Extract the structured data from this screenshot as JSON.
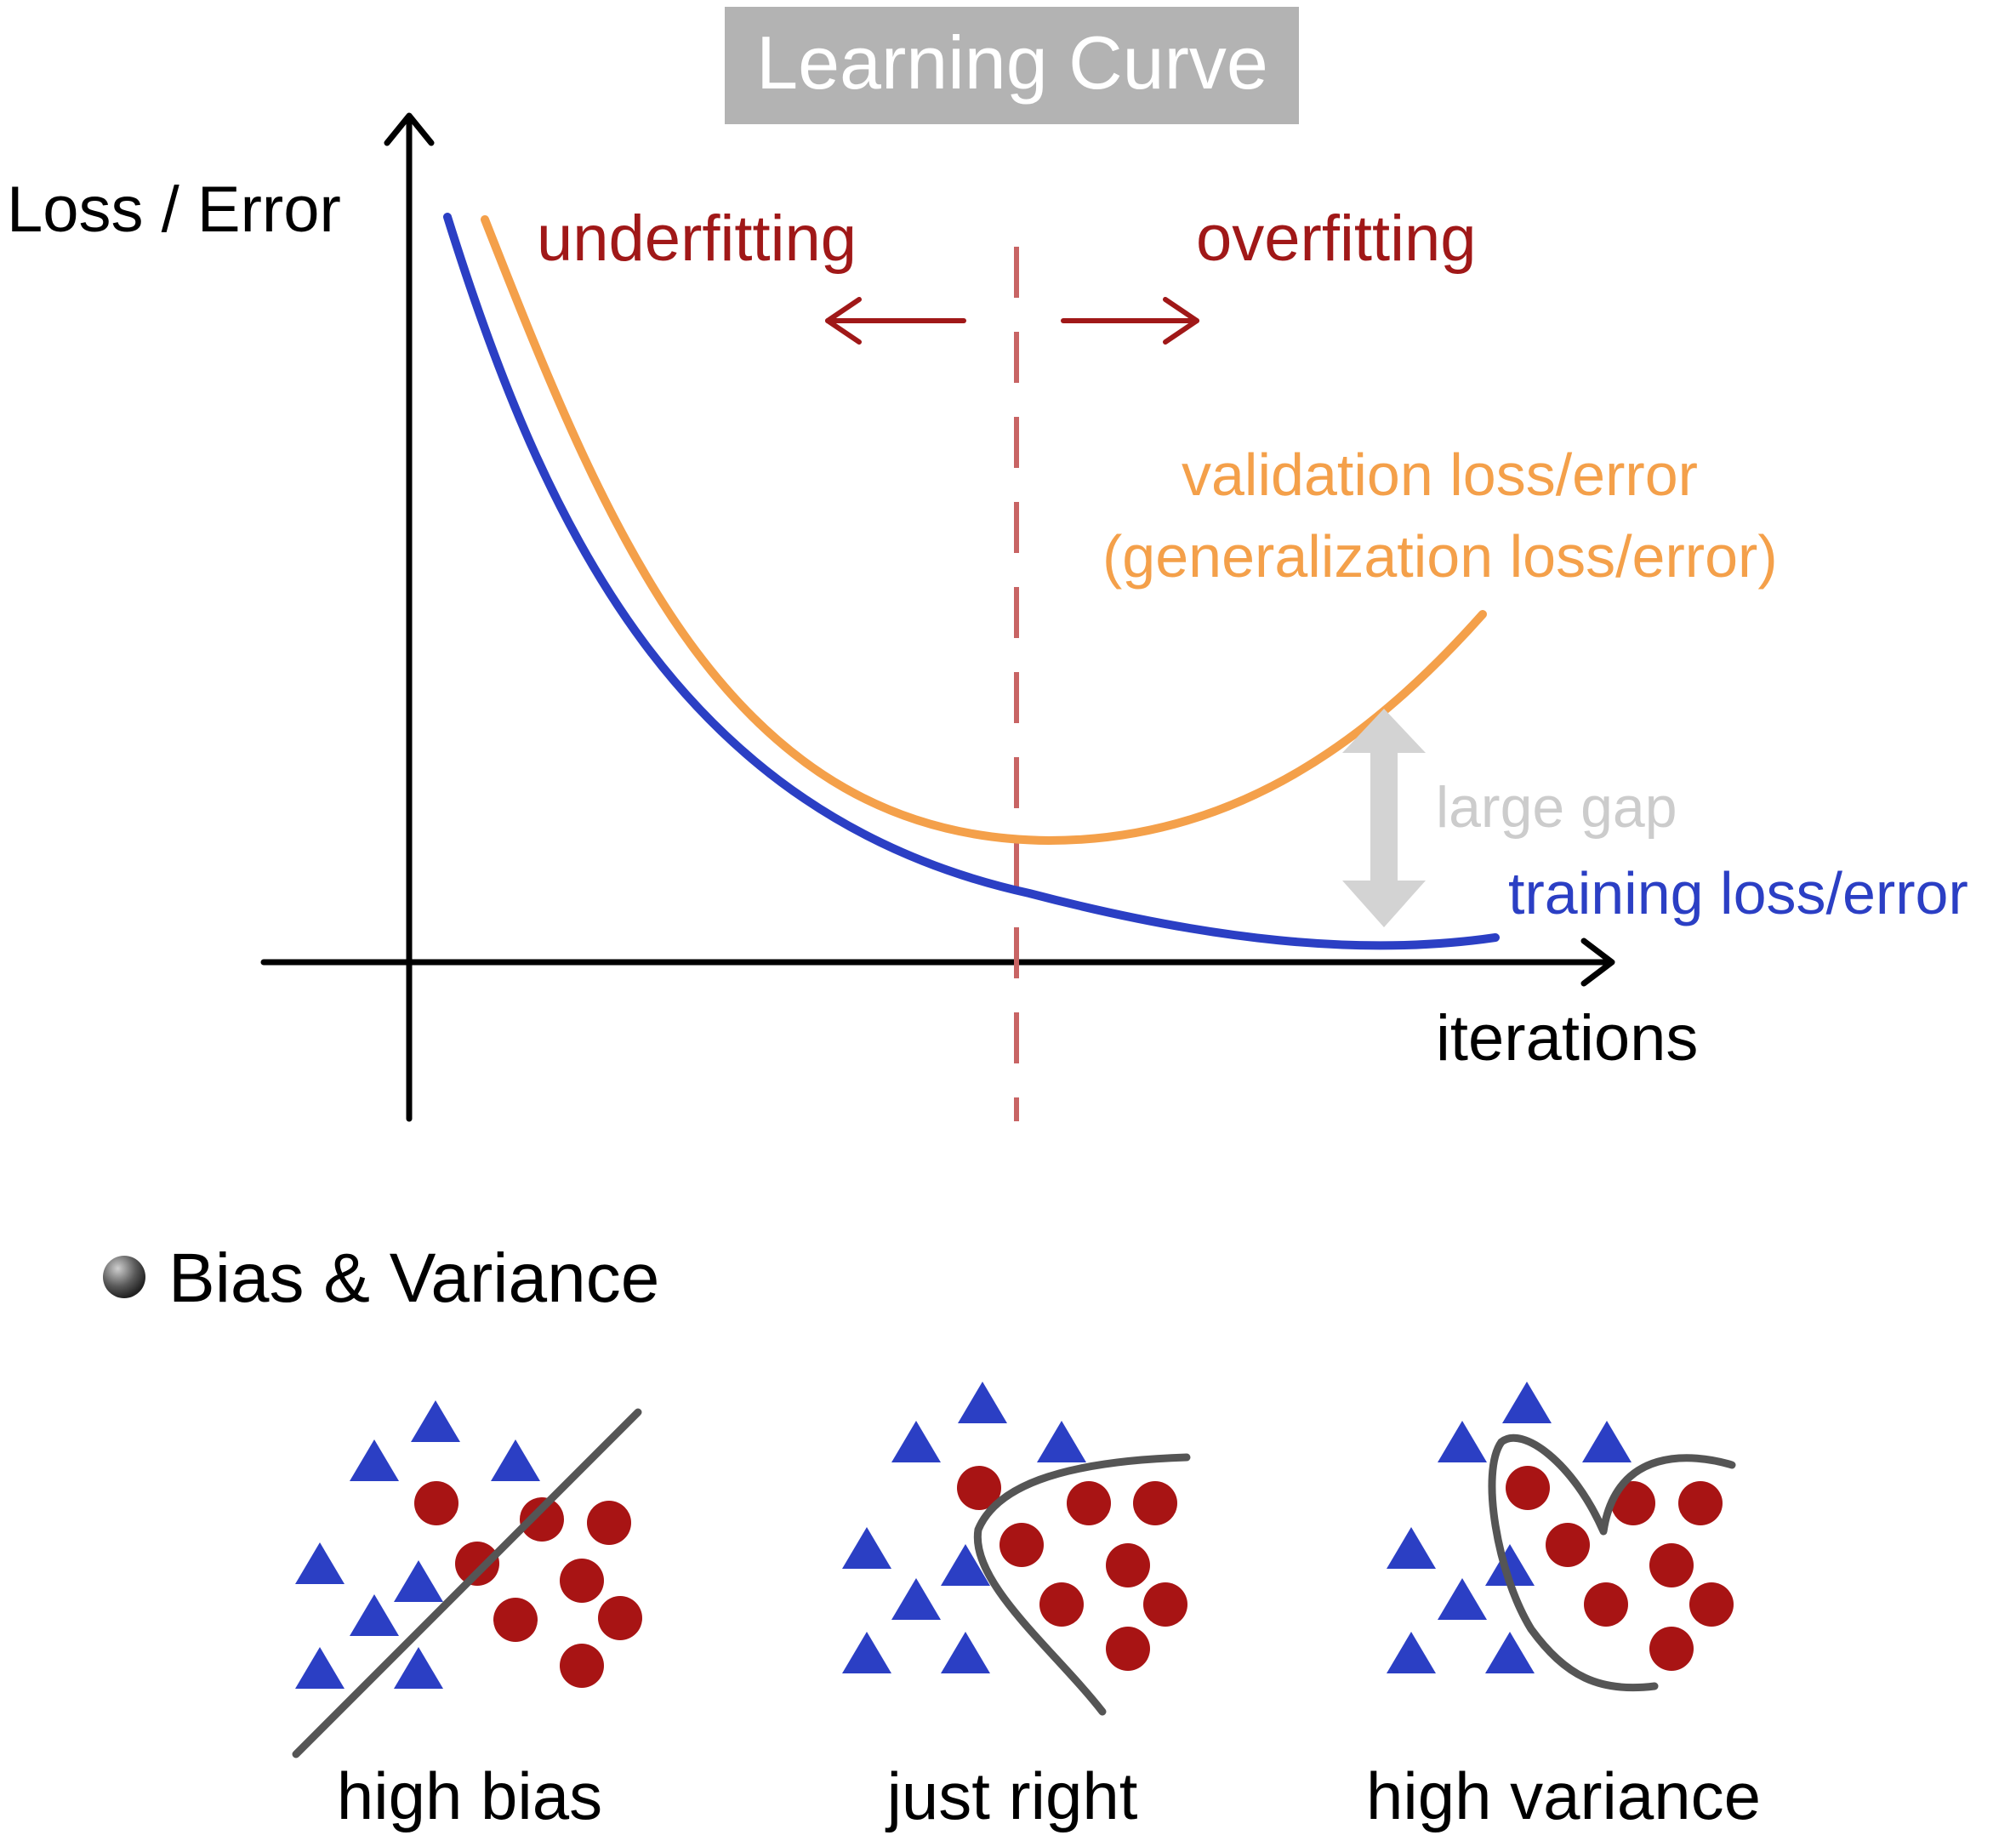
{
  "title": "Learning Curve",
  "learning_curve": {
    "y_axis_label": "Loss / Error",
    "x_axis_label": "iterations",
    "underfitting_label": "underfitting",
    "overfitting_label": "overfitting",
    "validation_label_line1": "validation loss/error",
    "validation_label_line2": "(generalization loss/error)",
    "gap_label": "large gap",
    "training_label": "training loss/error"
  },
  "bias_variance": {
    "heading": "Bias & Variance",
    "panels": [
      {
        "caption": "high bias"
      },
      {
        "caption": "just right"
      },
      {
        "caption": "high variance"
      }
    ]
  },
  "colors": {
    "training": "#2b3fc4",
    "validation": "#f4a04a",
    "fitting": "#a01818",
    "title_box": "#b3b3b3",
    "gap": "#d3d3d3",
    "boundary": "#555555",
    "triangle": "#2b3fc4",
    "circle": "#a81414"
  }
}
